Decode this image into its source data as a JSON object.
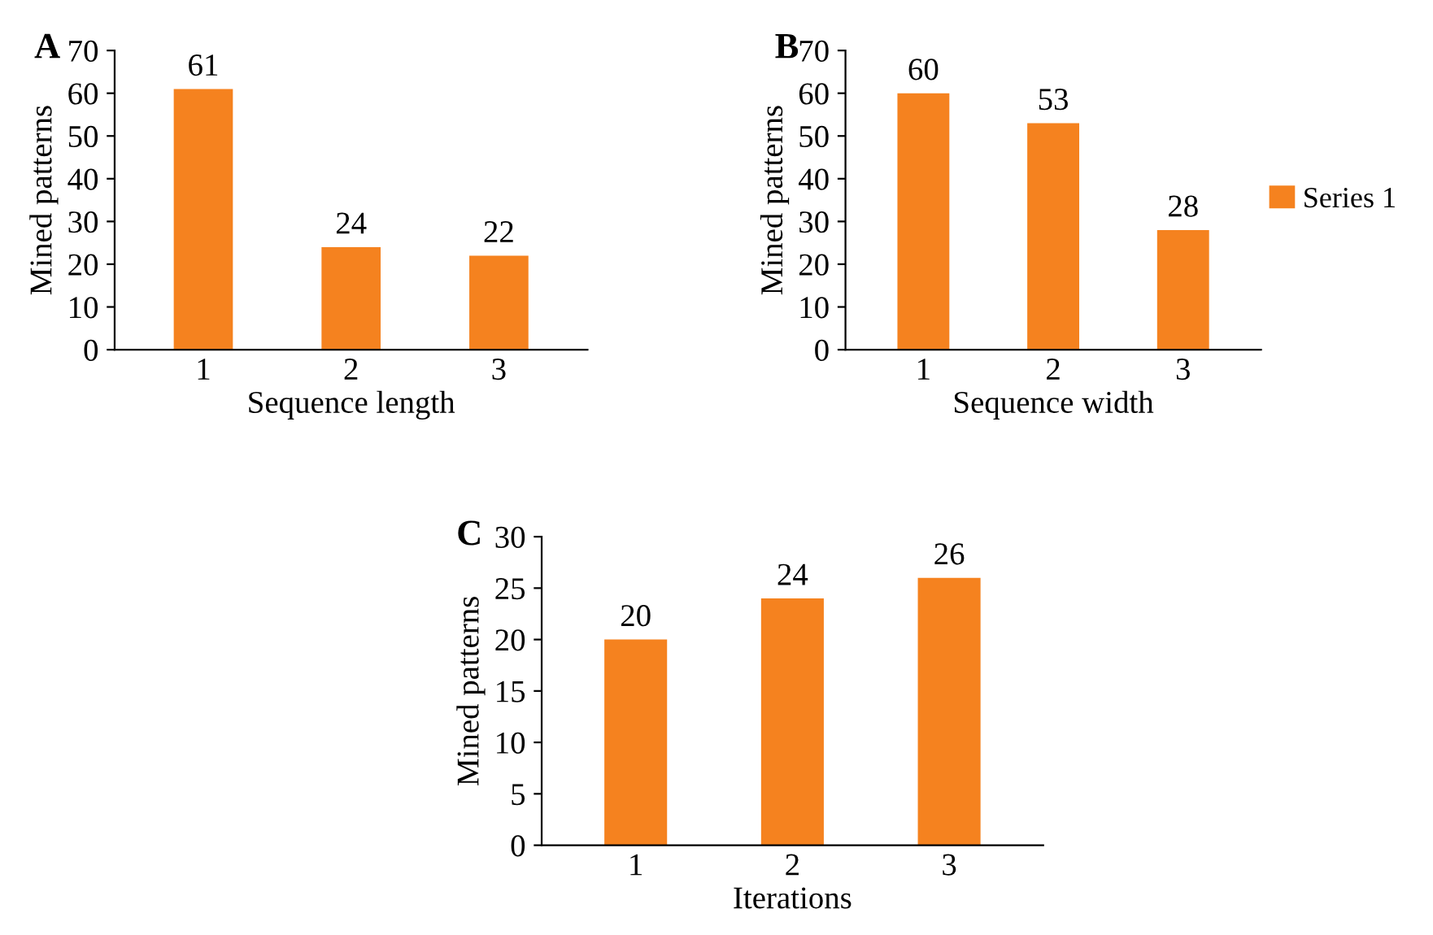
{
  "chart_data": [
    {
      "type": "bar",
      "title": "A",
      "xlabel": "Sequence length",
      "ylabel": "Mined patterns",
      "categories": [
        "1",
        "2",
        "3"
      ],
      "series": [
        {
          "color": "#f5821f",
          "values": [
            61,
            24,
            22
          ]
        }
      ],
      "ylim": [
        0,
        70
      ],
      "yticks": [
        0,
        10,
        20,
        30,
        40,
        50,
        60,
        70
      ],
      "data_labels": true,
      "grid": false
    },
    {
      "type": "bar",
      "title": "B",
      "xlabel": "Sequence width",
      "ylabel": "Mined patterns",
      "categories": [
        "1",
        "2",
        "3"
      ],
      "series": [
        {
          "name": "Series 1",
          "color": "#f5821f",
          "values": [
            60,
            53,
            28
          ]
        }
      ],
      "ylim": [
        0,
        70
      ],
      "yticks": [
        0,
        10,
        20,
        30,
        40,
        50,
        60,
        70
      ],
      "data_labels": true,
      "grid": false,
      "legend": "right"
    },
    {
      "type": "bar",
      "title": "C",
      "xlabel": "Iterations",
      "ylabel": "Mined patterns",
      "categories": [
        "1",
        "2",
        "3"
      ],
      "series": [
        {
          "color": "#f5821f",
          "values": [
            20,
            24,
            26
          ]
        }
      ],
      "ylim": [
        0,
        30
      ],
      "yticks": [
        0,
        5,
        10,
        15,
        20,
        25,
        30
      ],
      "data_labels": true,
      "grid": false
    }
  ]
}
